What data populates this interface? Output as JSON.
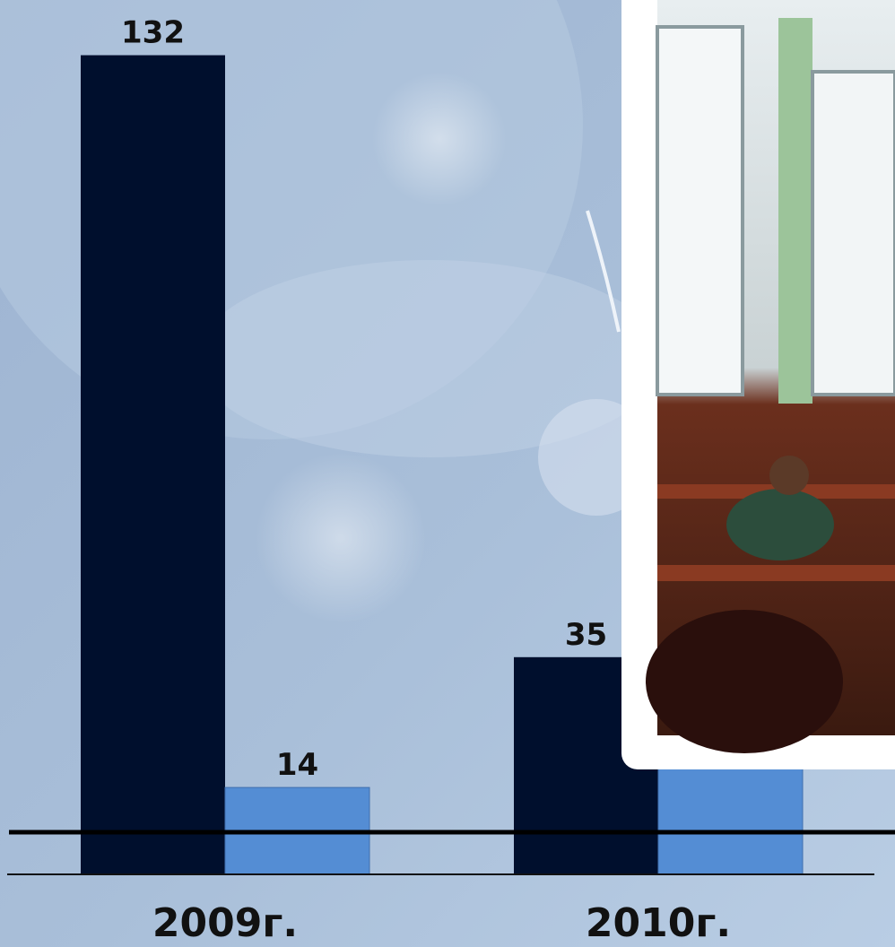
{
  "chart_data": {
    "type": "bar",
    "categories": [
      "2009г.",
      "2010г."
    ],
    "series": [
      {
        "color": "#000f2d",
        "values": [
          132,
          35
        ]
      },
      {
        "color": "#548dd4",
        "values": [
          14,
          20
        ]
      }
    ],
    "value_labels_shown": [
      [
        true,
        true
      ],
      [
        true,
        false
      ]
    ]
  }
}
